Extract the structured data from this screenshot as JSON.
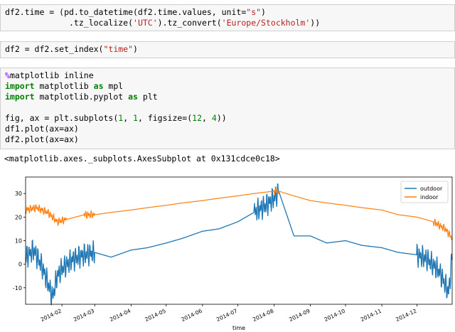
{
  "cells": [
    {
      "lines": [
        [
          {
            "t": "df2.time = (pd.to_datetime(df2.time.values, unit="
          },
          {
            "t": "\"s\"",
            "c": "str"
          },
          {
            "t": ")"
          }
        ],
        [
          {
            "t": "             .tz_localize("
          },
          {
            "t": "'UTC'",
            "c": "str"
          },
          {
            "t": ").tz_convert("
          },
          {
            "t": "'Europe/Stockholm'",
            "c": "str"
          },
          {
            "t": "))"
          }
        ]
      ]
    },
    {
      "lines": [
        [
          {
            "t": "df2 = df2.set_index("
          },
          {
            "t": "\"time\"",
            "c": "str"
          },
          {
            "t": ")"
          }
        ]
      ]
    },
    {
      "lines": [
        [
          {
            "t": "%",
            "c": "mag"
          },
          {
            "t": "matplotlib inline"
          }
        ],
        [
          {
            "t": "import",
            "c": "kw"
          },
          {
            "t": " matplotlib "
          },
          {
            "t": "as",
            "c": "kw"
          },
          {
            "t": " mpl"
          }
        ],
        [
          {
            "t": "import",
            "c": "kw"
          },
          {
            "t": " matplotlib.pyplot "
          },
          {
            "t": "as",
            "c": "kw"
          },
          {
            "t": " plt"
          }
        ],
        [
          {
            "t": ""
          }
        ],
        [
          {
            "t": "fig, ax = plt.subplots("
          },
          {
            "t": "1",
            "c": "num"
          },
          {
            "t": ", "
          },
          {
            "t": "1",
            "c": "num"
          },
          {
            "t": ", figsize=("
          },
          {
            "t": "12",
            "c": "num"
          },
          {
            "t": ", "
          },
          {
            "t": "4",
            "c": "num"
          },
          {
            "t": "))"
          }
        ],
        [
          {
            "t": "df1.plot(ax=ax)"
          }
        ],
        [
          {
            "t": "df2.plot(ax=ax)"
          }
        ]
      ]
    }
  ],
  "output_text": "<matplotlib.axes._subplots.AxesSubplot at 0x131cdce0c18>",
  "chart_data": {
    "type": "line",
    "xlabel": "time",
    "ylabel": "",
    "x_ticks": [
      "2014-02",
      "2014-03",
      "2014-04",
      "2014-05",
      "2014-06",
      "2014-07",
      "2014-08",
      "2014-09",
      "2014-10",
      "2014-11",
      "2014-12"
    ],
    "y_ticks": [
      -10,
      0,
      10,
      20,
      30
    ],
    "ylim": [
      -17,
      37
    ],
    "xlim": [
      "2014-01-01",
      "2014-12-31"
    ],
    "legend_position": "top-right",
    "series": [
      {
        "name": "outdoor",
        "color": "#1f77b4",
        "points": [
          [
            "2014-01-01",
            3
          ],
          [
            "2014-01-08",
            6
          ],
          [
            "2014-01-15",
            -1
          ],
          [
            "2014-01-20",
            -8
          ],
          [
            "2014-01-24",
            -14
          ],
          [
            "2014-01-28",
            -5
          ],
          [
            "2014-02-01",
            -2
          ],
          [
            "2014-02-10",
            2
          ],
          [
            "2014-02-20",
            4
          ],
          [
            "2014-03-01",
            5
          ],
          [
            "2014-03-15",
            3
          ],
          [
            "2014-04-01",
            6
          ],
          [
            "2014-04-15",
            7
          ],
          [
            "2014-05-01",
            9
          ],
          [
            "2014-05-15",
            11
          ],
          [
            "2014-06-01",
            14
          ],
          [
            "2014-06-15",
            15
          ],
          [
            "2014-07-01",
            18
          ],
          [
            "2014-07-15",
            22
          ],
          [
            "2014-07-25",
            25
          ],
          [
            "2014-08-01",
            28
          ],
          [
            "2014-08-05",
            31
          ],
          [
            "2014-08-18",
            12
          ],
          [
            "2014-09-01",
            12
          ],
          [
            "2014-09-15",
            9
          ],
          [
            "2014-10-01",
            10
          ],
          [
            "2014-10-15",
            8
          ],
          [
            "2014-11-01",
            7
          ],
          [
            "2014-11-15",
            5
          ],
          [
            "2014-12-01",
            4
          ],
          [
            "2014-12-10",
            2
          ],
          [
            "2014-12-20",
            -3
          ],
          [
            "2014-12-28",
            -12
          ],
          [
            "2014-12-31",
            3
          ]
        ]
      },
      {
        "name": "indoor",
        "color": "#ff7f0e",
        "points": [
          [
            "2014-01-01",
            23
          ],
          [
            "2014-01-10",
            24
          ],
          [
            "2014-01-20",
            22
          ],
          [
            "2014-01-28",
            18
          ],
          [
            "2014-02-05",
            19
          ],
          [
            "2014-02-20",
            21
          ],
          [
            "2014-03-01",
            21
          ],
          [
            "2014-03-15",
            22
          ],
          [
            "2014-04-01",
            23
          ],
          [
            "2014-04-15",
            24
          ],
          [
            "2014-05-01",
            25
          ],
          [
            "2014-05-15",
            26
          ],
          [
            "2014-06-01",
            27
          ],
          [
            "2014-06-15",
            28
          ],
          [
            "2014-07-01",
            29
          ],
          [
            "2014-07-15",
            30
          ],
          [
            "2014-08-01",
            31
          ],
          [
            "2014-08-05",
            31
          ],
          [
            "2014-08-18",
            29
          ],
          [
            "2014-09-01",
            27
          ],
          [
            "2014-09-15",
            26
          ],
          [
            "2014-10-01",
            25
          ],
          [
            "2014-10-15",
            24
          ],
          [
            "2014-11-01",
            23
          ],
          [
            "2014-11-15",
            21
          ],
          [
            "2014-12-01",
            20
          ],
          [
            "2014-12-15",
            18
          ],
          [
            "2014-12-25",
            15
          ],
          [
            "2014-12-31",
            11
          ]
        ]
      }
    ]
  }
}
